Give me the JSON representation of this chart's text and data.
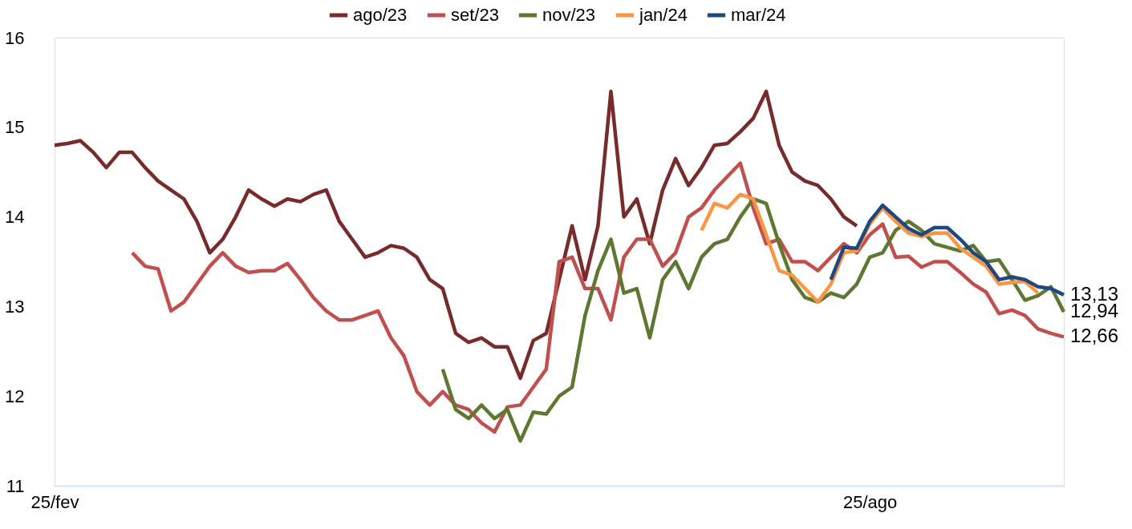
{
  "chart_data": {
    "type": "line",
    "categories": [
      "25/fev",
      null,
      null,
      null,
      null,
      null,
      null,
      null,
      null,
      null,
      null,
      null,
      null,
      null,
      null,
      null,
      null,
      null,
      null,
      null,
      null,
      null,
      null,
      null,
      null,
      null,
      null,
      null,
      null,
      null,
      null,
      null,
      null,
      null,
      null,
      null,
      null,
      null,
      null,
      null,
      null,
      null,
      null,
      null,
      null,
      null,
      null,
      null,
      null,
      null,
      null,
      null,
      null,
      null,
      null,
      null,
      null,
      null,
      null,
      null,
      null,
      null,
      null,
      "25/ago",
      null,
      null,
      null,
      null,
      null,
      null,
      null,
      null,
      null,
      null,
      null,
      null,
      null,
      null,
      null
    ],
    "ylim": [
      11,
      16
    ],
    "yticks": [
      11,
      12,
      13,
      14,
      15,
      16
    ],
    "grid": false,
    "legend": "top",
    "line_style": "solid",
    "marker": "none",
    "series": [
      {
        "name": "ago/23",
        "color": "#772b2b",
        "values": [
          14.8,
          14.82,
          14.85,
          14.72,
          14.55,
          14.72,
          14.72,
          14.55,
          14.4,
          14.3,
          14.2,
          13.95,
          13.6,
          13.75,
          14.0,
          14.3,
          14.2,
          14.12,
          14.2,
          14.17,
          14.25,
          14.3,
          13.95,
          13.75,
          13.55,
          13.6,
          13.68,
          13.65,
          13.55,
          13.3,
          13.2,
          12.7,
          12.6,
          12.65,
          12.55,
          12.55,
          12.2,
          12.62,
          12.7,
          13.3,
          13.9,
          13.3,
          13.9,
          15.4,
          14.0,
          14.2,
          13.7,
          14.3,
          14.65,
          14.35,
          14.55,
          14.8,
          14.82,
          14.95,
          15.1,
          15.4,
          14.8,
          14.5,
          14.4,
          14.35,
          14.2,
          14.0,
          13.9,
          null,
          null,
          null,
          null,
          null,
          null,
          null,
          null,
          null,
          null,
          null,
          null,
          null,
          null,
          null,
          null
        ]
      },
      {
        "name": "set/23",
        "color": "#c0504d",
        "values": [
          null,
          null,
          null,
          null,
          null,
          null,
          13.6,
          13.45,
          13.42,
          12.95,
          13.05,
          13.25,
          13.45,
          13.6,
          13.45,
          13.38,
          13.4,
          13.4,
          13.48,
          13.3,
          13.1,
          12.95,
          12.85,
          12.85,
          12.9,
          12.95,
          12.65,
          12.45,
          12.05,
          11.9,
          12.05,
          11.9,
          11.85,
          11.7,
          11.6,
          11.88,
          11.9,
          12.1,
          12.3,
          13.5,
          13.55,
          13.2,
          13.2,
          12.85,
          13.55,
          13.75,
          13.75,
          13.45,
          13.6,
          14.0,
          14.1,
          14.3,
          14.45,
          14.6,
          14.1,
          13.7,
          13.75,
          13.5,
          13.5,
          13.4,
          13.55,
          13.7,
          13.6,
          13.8,
          13.92,
          13.55,
          13.56,
          13.44,
          13.5,
          13.5,
          13.38,
          13.25,
          13.16,
          12.92,
          12.96,
          12.9,
          12.75,
          12.7,
          12.66
        ],
        "value_labels": [
          null,
          null,
          null,
          null,
          null,
          null,
          null,
          null,
          null,
          null,
          null,
          null,
          null,
          null,
          null,
          null,
          null,
          null,
          null,
          null,
          null,
          null,
          null,
          null,
          null,
          null,
          null,
          null,
          null,
          null,
          null,
          null,
          null,
          null,
          null,
          null,
          null,
          null,
          null,
          null,
          null,
          null,
          null,
          null,
          null,
          null,
          null,
          null,
          null,
          null,
          null,
          null,
          null,
          null,
          null,
          null,
          null,
          null,
          null,
          null,
          null,
          null,
          null,
          null,
          null,
          null,
          null,
          null,
          null,
          null,
          null,
          null,
          null,
          null,
          null,
          null,
          null,
          null,
          "12,66"
        ]
      },
      {
        "name": "nov/23",
        "color": "#5e7731",
        "values": [
          null,
          null,
          null,
          null,
          null,
          null,
          null,
          null,
          null,
          null,
          null,
          null,
          null,
          null,
          null,
          null,
          null,
          null,
          null,
          null,
          null,
          null,
          null,
          null,
          null,
          null,
          null,
          null,
          null,
          null,
          12.3,
          11.85,
          11.75,
          11.9,
          11.75,
          11.85,
          11.5,
          11.82,
          11.8,
          12.0,
          12.1,
          12.9,
          13.4,
          13.75,
          13.15,
          13.2,
          12.65,
          13.3,
          13.5,
          13.2,
          13.55,
          13.7,
          13.75,
          14.0,
          14.2,
          14.15,
          13.7,
          13.3,
          13.1,
          13.05,
          13.15,
          13.1,
          13.25,
          13.55,
          13.6,
          13.85,
          13.95,
          13.85,
          13.7,
          13.66,
          13.62,
          13.68,
          13.5,
          13.52,
          13.3,
          13.07,
          13.12,
          13.22,
          12.94
        ],
        "value_labels": [
          null,
          null,
          null,
          null,
          null,
          null,
          null,
          null,
          null,
          null,
          null,
          null,
          null,
          null,
          null,
          null,
          null,
          null,
          null,
          null,
          null,
          null,
          null,
          null,
          null,
          null,
          null,
          null,
          null,
          null,
          null,
          null,
          null,
          null,
          null,
          null,
          null,
          null,
          null,
          null,
          null,
          null,
          null,
          null,
          null,
          null,
          null,
          null,
          null,
          null,
          null,
          null,
          null,
          null,
          null,
          null,
          null,
          null,
          null,
          null,
          null,
          null,
          null,
          null,
          null,
          null,
          null,
          null,
          null,
          null,
          null,
          null,
          null,
          null,
          null,
          null,
          null,
          null,
          "12,94"
        ]
      },
      {
        "name": "jan/24",
        "color": "#f79646",
        "values": [
          null,
          null,
          null,
          null,
          null,
          null,
          null,
          null,
          null,
          null,
          null,
          null,
          null,
          null,
          null,
          null,
          null,
          null,
          null,
          null,
          null,
          null,
          null,
          null,
          null,
          null,
          null,
          null,
          null,
          null,
          null,
          null,
          null,
          null,
          null,
          null,
          null,
          null,
          null,
          null,
          null,
          null,
          null,
          null,
          null,
          null,
          null,
          null,
          null,
          null,
          13.85,
          14.15,
          14.1,
          14.25,
          14.2,
          13.8,
          13.4,
          13.35,
          13.2,
          13.05,
          13.25,
          13.6,
          13.62,
          13.92,
          14.1,
          13.95,
          13.82,
          13.78,
          13.82,
          13.82,
          13.65,
          13.55,
          13.45,
          13.25,
          13.27,
          13.28,
          13.15,
          null,
          null
        ]
      },
      {
        "name": "mar/24",
        "color": "#1f497d",
        "values": [
          null,
          null,
          null,
          null,
          null,
          null,
          null,
          null,
          null,
          null,
          null,
          null,
          null,
          null,
          null,
          null,
          null,
          null,
          null,
          null,
          null,
          null,
          null,
          null,
          null,
          null,
          null,
          null,
          null,
          null,
          null,
          null,
          null,
          null,
          null,
          null,
          null,
          null,
          null,
          null,
          null,
          null,
          null,
          null,
          null,
          null,
          null,
          null,
          null,
          null,
          null,
          null,
          null,
          null,
          null,
          null,
          null,
          null,
          null,
          null,
          13.3,
          13.66,
          13.65,
          13.95,
          14.13,
          14.0,
          13.87,
          13.8,
          13.88,
          13.88,
          13.75,
          13.6,
          13.5,
          13.3,
          13.33,
          13.3,
          13.22,
          13.2,
          13.13
        ],
        "value_labels": [
          null,
          null,
          null,
          null,
          null,
          null,
          null,
          null,
          null,
          null,
          null,
          null,
          null,
          null,
          null,
          null,
          null,
          null,
          null,
          null,
          null,
          null,
          null,
          null,
          null,
          null,
          null,
          null,
          null,
          null,
          null,
          null,
          null,
          null,
          null,
          null,
          null,
          null,
          null,
          null,
          null,
          null,
          null,
          null,
          null,
          null,
          null,
          null,
          null,
          null,
          null,
          null,
          null,
          null,
          null,
          null,
          null,
          null,
          null,
          null,
          null,
          null,
          null,
          null,
          null,
          null,
          null,
          null,
          null,
          null,
          null,
          null,
          null,
          null,
          null,
          null,
          null,
          null,
          "13,13"
        ]
      }
    ]
  }
}
